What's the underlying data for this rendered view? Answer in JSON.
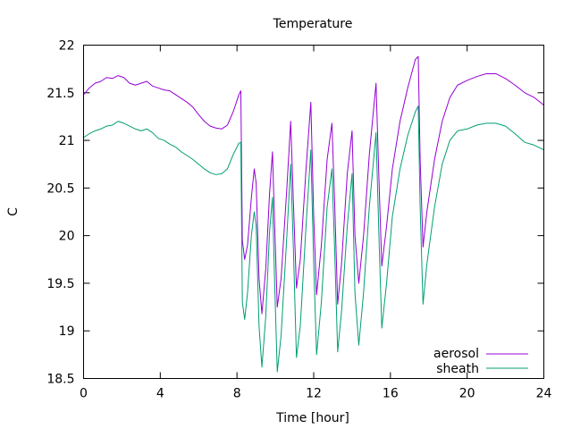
{
  "chart_data": {
    "type": "line",
    "title": "Temperature",
    "xlabel": "Time [hour]",
    "ylabel": "C",
    "xlim": [
      0,
      24
    ],
    "ylim": [
      18.5,
      22
    ],
    "xticks": [
      0,
      4,
      8,
      12,
      16,
      20,
      24
    ],
    "yticks": [
      18.5,
      19,
      19.5,
      20,
      20.5,
      21,
      21.5,
      22
    ],
    "ytick_labels": [
      "18.5",
      "19",
      "19.5",
      "20",
      "20.5",
      "21",
      "21.5",
      "22"
    ],
    "grid": false,
    "legend_position": "bottom-right",
    "series": [
      {
        "name": "aerosol",
        "color": "#9400d3",
        "points": [
          [
            0.0,
            21.48
          ],
          [
            0.3,
            21.55
          ],
          [
            0.6,
            21.6
          ],
          [
            0.9,
            21.62
          ],
          [
            1.2,
            21.66
          ],
          [
            1.5,
            21.65
          ],
          [
            1.8,
            21.68
          ],
          [
            2.1,
            21.66
          ],
          [
            2.4,
            21.6
          ],
          [
            2.7,
            21.58
          ],
          [
            3.0,
            21.6
          ],
          [
            3.3,
            21.62
          ],
          [
            3.6,
            21.57
          ],
          [
            3.9,
            21.55
          ],
          [
            4.2,
            21.53
          ],
          [
            4.5,
            21.52
          ],
          [
            4.8,
            21.48
          ],
          [
            5.1,
            21.44
          ],
          [
            5.4,
            21.4
          ],
          [
            5.7,
            21.35
          ],
          [
            6.0,
            21.27
          ],
          [
            6.3,
            21.2
          ],
          [
            6.6,
            21.15
          ],
          [
            6.9,
            21.13
          ],
          [
            7.2,
            21.12
          ],
          [
            7.5,
            21.16
          ],
          [
            7.8,
            21.3
          ],
          [
            8.1,
            21.48
          ],
          [
            8.2,
            21.52
          ],
          [
            8.28,
            19.95
          ],
          [
            8.4,
            19.75
          ],
          [
            8.55,
            19.9
          ],
          [
            8.75,
            20.4
          ],
          [
            8.9,
            20.7
          ],
          [
            9.0,
            20.55
          ],
          [
            9.15,
            19.55
          ],
          [
            9.3,
            19.18
          ],
          [
            9.5,
            19.65
          ],
          [
            9.7,
            20.45
          ],
          [
            9.85,
            20.88
          ],
          [
            9.95,
            20.2
          ],
          [
            10.1,
            19.25
          ],
          [
            10.3,
            19.55
          ],
          [
            10.6,
            20.5
          ],
          [
            10.8,
            21.2
          ],
          [
            10.95,
            20.3
          ],
          [
            11.1,
            19.45
          ],
          [
            11.3,
            19.75
          ],
          [
            11.6,
            20.7
          ],
          [
            11.85,
            21.4
          ],
          [
            12.0,
            20.2
          ],
          [
            12.15,
            19.38
          ],
          [
            12.4,
            19.9
          ],
          [
            12.7,
            20.8
          ],
          [
            12.95,
            21.18
          ],
          [
            13.1,
            20.3
          ],
          [
            13.25,
            19.28
          ],
          [
            13.45,
            19.7
          ],
          [
            13.75,
            20.65
          ],
          [
            14.0,
            21.1
          ],
          [
            14.15,
            20.0
          ],
          [
            14.35,
            19.5
          ],
          [
            14.6,
            20.0
          ],
          [
            14.9,
            20.85
          ],
          [
            15.25,
            21.6
          ],
          [
            15.4,
            20.6
          ],
          [
            15.55,
            19.68
          ],
          [
            15.8,
            20.1
          ],
          [
            16.1,
            20.7
          ],
          [
            16.5,
            21.2
          ],
          [
            16.9,
            21.55
          ],
          [
            17.3,
            21.85
          ],
          [
            17.45,
            21.88
          ],
          [
            17.55,
            20.8
          ],
          [
            17.7,
            19.88
          ],
          [
            17.9,
            20.25
          ],
          [
            18.3,
            20.8
          ],
          [
            18.7,
            21.2
          ],
          [
            19.1,
            21.45
          ],
          [
            19.5,
            21.58
          ],
          [
            20.0,
            21.63
          ],
          [
            20.5,
            21.67
          ],
          [
            21.0,
            21.7
          ],
          [
            21.5,
            21.7
          ],
          [
            22.0,
            21.65
          ],
          [
            22.5,
            21.58
          ],
          [
            23.0,
            21.5
          ],
          [
            23.5,
            21.45
          ],
          [
            24.0,
            21.37
          ]
        ]
      },
      {
        "name": "sheath",
        "color": "#009e73",
        "points": [
          [
            0.0,
            21.03
          ],
          [
            0.3,
            21.07
          ],
          [
            0.6,
            21.1
          ],
          [
            0.9,
            21.12
          ],
          [
            1.2,
            21.15
          ],
          [
            1.5,
            21.16
          ],
          [
            1.8,
            21.2
          ],
          [
            2.1,
            21.18
          ],
          [
            2.4,
            21.15
          ],
          [
            2.7,
            21.12
          ],
          [
            3.0,
            21.1
          ],
          [
            3.3,
            21.12
          ],
          [
            3.6,
            21.08
          ],
          [
            3.9,
            21.02
          ],
          [
            4.2,
            21.0
          ],
          [
            4.5,
            20.96
          ],
          [
            4.8,
            20.93
          ],
          [
            5.1,
            20.88
          ],
          [
            5.4,
            20.84
          ],
          [
            5.7,
            20.8
          ],
          [
            6.0,
            20.75
          ],
          [
            6.3,
            20.7
          ],
          [
            6.6,
            20.66
          ],
          [
            6.9,
            20.64
          ],
          [
            7.2,
            20.65
          ],
          [
            7.5,
            20.7
          ],
          [
            7.8,
            20.85
          ],
          [
            8.1,
            20.97
          ],
          [
            8.2,
            20.98
          ],
          [
            8.28,
            19.3
          ],
          [
            8.4,
            19.12
          ],
          [
            8.55,
            19.4
          ],
          [
            8.75,
            20.0
          ],
          [
            8.9,
            20.25
          ],
          [
            9.0,
            20.1
          ],
          [
            9.15,
            19.05
          ],
          [
            9.3,
            18.62
          ],
          [
            9.5,
            19.15
          ],
          [
            9.7,
            20.05
          ],
          [
            9.85,
            20.4
          ],
          [
            9.95,
            19.6
          ],
          [
            10.1,
            18.57
          ],
          [
            10.3,
            18.95
          ],
          [
            10.6,
            20.0
          ],
          [
            10.8,
            20.75
          ],
          [
            10.95,
            19.8
          ],
          [
            11.1,
            18.72
          ],
          [
            11.3,
            19.05
          ],
          [
            11.6,
            20.1
          ],
          [
            11.85,
            20.9
          ],
          [
            12.0,
            19.7
          ],
          [
            12.15,
            18.75
          ],
          [
            12.4,
            19.3
          ],
          [
            12.7,
            20.3
          ],
          [
            12.95,
            20.7
          ],
          [
            13.1,
            19.8
          ],
          [
            13.25,
            18.78
          ],
          [
            13.45,
            19.2
          ],
          [
            13.75,
            20.1
          ],
          [
            14.0,
            20.65
          ],
          [
            14.15,
            19.4
          ],
          [
            14.35,
            18.85
          ],
          [
            14.6,
            19.4
          ],
          [
            14.9,
            20.3
          ],
          [
            15.25,
            21.08
          ],
          [
            15.4,
            20.0
          ],
          [
            15.55,
            19.03
          ],
          [
            15.8,
            19.5
          ],
          [
            16.1,
            20.2
          ],
          [
            16.5,
            20.7
          ],
          [
            16.9,
            21.05
          ],
          [
            17.3,
            21.3
          ],
          [
            17.45,
            21.36
          ],
          [
            17.55,
            20.3
          ],
          [
            17.7,
            19.28
          ],
          [
            17.9,
            19.7
          ],
          [
            18.3,
            20.3
          ],
          [
            18.7,
            20.75
          ],
          [
            19.1,
            21.0
          ],
          [
            19.5,
            21.1
          ],
          [
            20.0,
            21.12
          ],
          [
            20.5,
            21.16
          ],
          [
            21.0,
            21.18
          ],
          [
            21.5,
            21.18
          ],
          [
            22.0,
            21.15
          ],
          [
            22.5,
            21.07
          ],
          [
            23.0,
            20.98
          ],
          [
            23.5,
            20.95
          ],
          [
            24.0,
            20.9
          ]
        ]
      }
    ]
  }
}
